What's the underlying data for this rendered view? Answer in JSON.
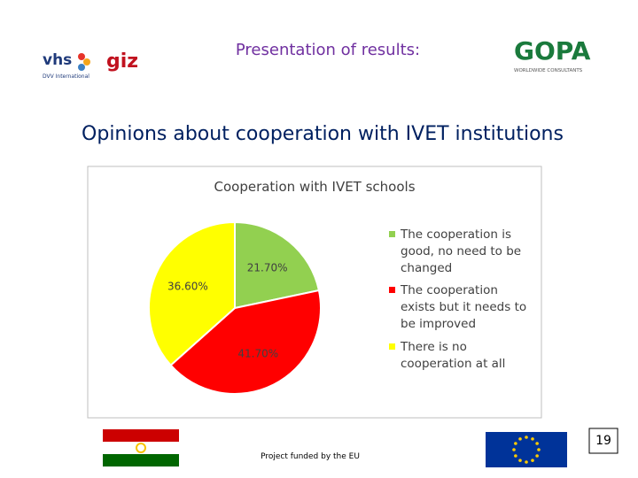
{
  "header": "Presentation of results:",
  "heading": "Opinions about cooperation with IVET institutions",
  "logos": {
    "vhs": "vhs",
    "dvv": "DVV International",
    "giz": "giz",
    "gopa": "GOPA",
    "gopa_sub": "WORLDWIDE CONSULTANTS"
  },
  "footer": "Project funded by the EU",
  "page_number": "19",
  "chart_data": {
    "type": "pie",
    "title": "Cooperation with IVET schools",
    "categories": [
      "The cooperation is good, no need to be changed",
      "The cooperation exists but it needs to be improved",
      "There is no cooperation at all"
    ],
    "values": [
      21.7,
      41.7,
      36.6
    ],
    "value_labels": [
      "21.70%",
      "41.70%",
      "36.60%"
    ],
    "colors": [
      "#92d050",
      "#ff0000",
      "#ffff00"
    ],
    "legend": "right"
  }
}
